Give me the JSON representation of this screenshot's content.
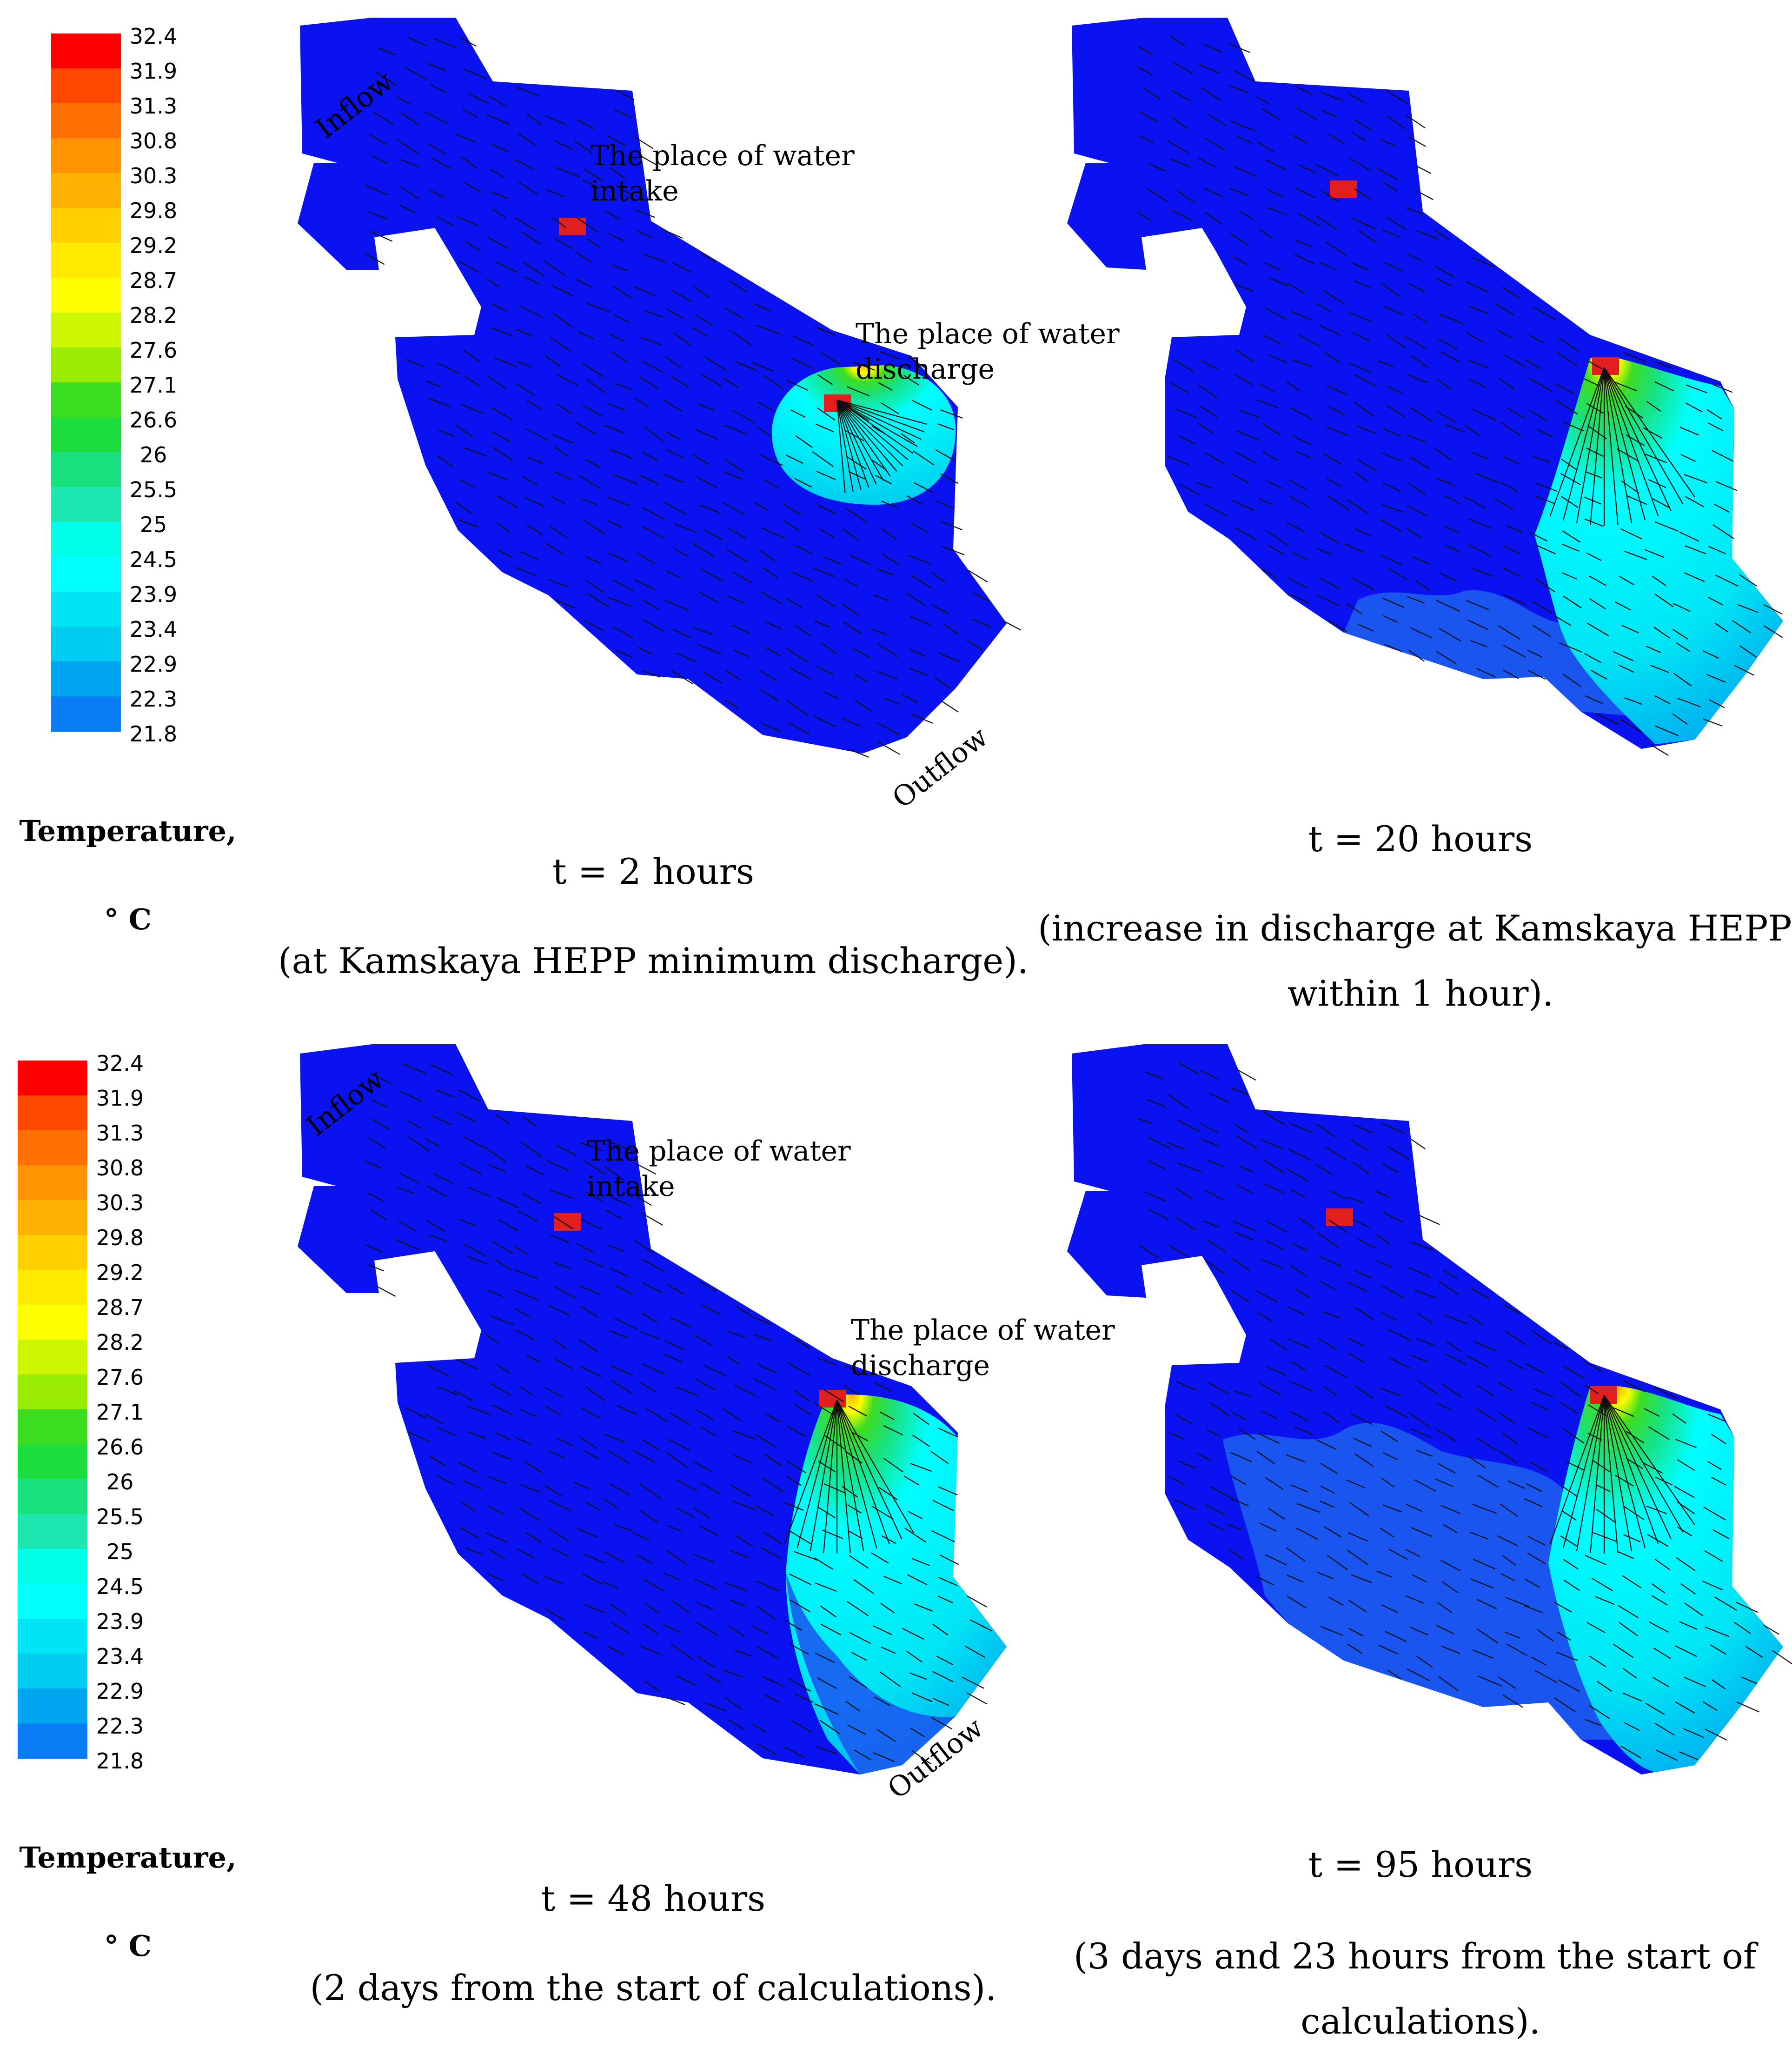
{
  "legend": {
    "title": "Temperature,",
    "unit": "° C",
    "levels": [
      "32.4",
      "31.9",
      "31.3",
      "30.8",
      "30.3",
      "29.8",
      "29.2",
      "28.7",
      "28.2",
      "27.6",
      "27.1",
      "26.6",
      "26",
      "25.5",
      "25",
      "24.5",
      "23.9",
      "23.4",
      "22.9",
      "22.3",
      "21.8"
    ],
    "colors": [
      "#ff0000",
      "#ff4800",
      "#ff6f00",
      "#ff9300",
      "#ffb100",
      "#ffcf00",
      "#ffea00",
      "#ffff00",
      "#cdf700",
      "#97ec00",
      "#3cdd20",
      "#1ddc3e",
      "#19e17f",
      "#1de6b0",
      "#00ffe8",
      "#00ffff",
      "#00e5f5",
      "#00cdf0",
      "#00a5f0",
      "#0a7cf5",
      "#0a12f0"
    ]
  },
  "labels": {
    "inflow": "Inflow",
    "outflow": "Outflow",
    "intake": [
      "The place of water",
      "intake"
    ],
    "discharge": [
      "The place of water",
      "discharge"
    ]
  },
  "panels": [
    {
      "time": "t = 2 hours",
      "caption": [
        "(at Kamskaya HEPP minimum discharge)."
      ]
    },
    {
      "time": "t = 20 hours",
      "caption": [
        "(increase in discharge at Kamskaya HEPP",
        "within 1 hour)."
      ]
    },
    {
      "time": "t = 48 hours",
      "caption": [
        "(2 days from the start of calculations)."
      ]
    },
    {
      "time": "t = 95 hours",
      "caption": [
        "(3 days and 23 hours from the start of",
        "calculations)."
      ]
    }
  ],
  "colors": {
    "water": "#0a12f0",
    "cool_zone": "#1a55f0",
    "plume_light": "#00e5f5",
    "plume_mid": "#1ddc3e",
    "plume_hot": "#ffb100",
    "marker": "#e31e1e",
    "arrow": "#101010"
  }
}
